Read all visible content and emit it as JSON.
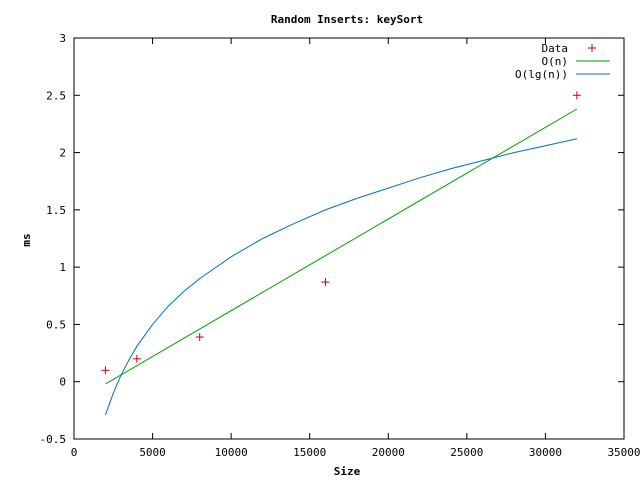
{
  "chart_data": {
    "type": "line",
    "title": "Random Inserts: keySort",
    "xlabel": "Size",
    "ylabel": "ms",
    "xlim": [
      0,
      35000
    ],
    "ylim": [
      -0.5,
      3
    ],
    "grid": false,
    "legend_position": "top-right",
    "x_ticks": [
      0,
      5000,
      10000,
      15000,
      20000,
      25000,
      30000,
      35000
    ],
    "x_tick_labels": [
      "0",
      "5000",
      "10000",
      "15000",
      "20000",
      "25000",
      "30000",
      "35000"
    ],
    "y_ticks": [
      -0.5,
      0,
      0.5,
      1,
      1.5,
      2,
      2.5,
      3
    ],
    "y_tick_labels": [
      "-0.5",
      "0",
      "0.5",
      "1",
      "1.5",
      "2",
      "2.5",
      "3"
    ],
    "series": [
      {
        "name": "Data",
        "style": "points",
        "marker": "+",
        "color": "#cc0000",
        "x": [
          2000,
          4000,
          8000,
          16000,
          32000
        ],
        "y": [
          0.1,
          0.2,
          0.39,
          0.87,
          2.5
        ]
      },
      {
        "name": "O(n)",
        "style": "line",
        "color": "#00a000",
        "x": [
          2000,
          32000
        ],
        "y": [
          -0.02,
          2.38
        ]
      },
      {
        "name": "O(lg(n))",
        "style": "line",
        "color": "#0070c0",
        "x": [
          2000,
          2500,
          3000,
          3500,
          4000,
          5000,
          6000,
          7000,
          8000,
          10000,
          12000,
          14000,
          16000,
          18000,
          20000,
          22000,
          24000,
          26000,
          28000,
          30000,
          32000
        ],
        "y": [
          -0.29,
          -0.1,
          0.06,
          0.19,
          0.31,
          0.5,
          0.66,
          0.79,
          0.9,
          1.09,
          1.25,
          1.38,
          1.5,
          1.6,
          1.69,
          1.78,
          1.86,
          1.93,
          2.0,
          2.06,
          2.12
        ]
      }
    ]
  }
}
